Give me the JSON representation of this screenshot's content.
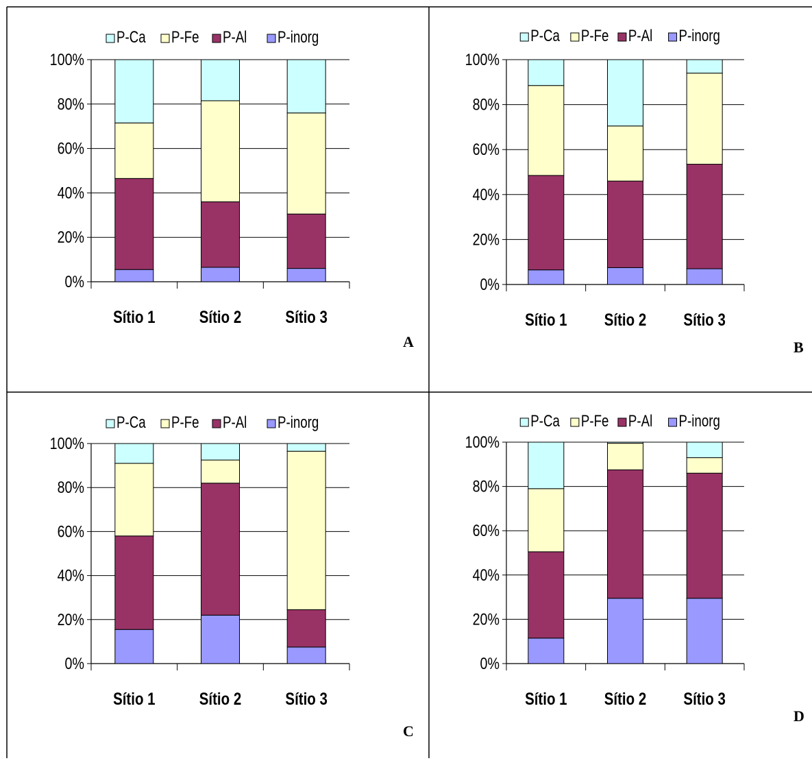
{
  "legend": [
    "P-Ca",
    "P-Fe",
    "P-Al",
    "P-inorg"
  ],
  "colors": {
    "P-inorg": "#9999FF",
    "P-Al": "#993366",
    "P-Fe": "#FFFFCC",
    "P-Ca": "#CCFFFF",
    "gridline": "#000000",
    "border": "#000000"
  },
  "chart_data": [
    {
      "panel": "A",
      "type": "bar",
      "stacked": true,
      "percent": true,
      "categories": [
        "Sítio 1",
        "Sítio 2",
        "Sítio 3"
      ],
      "ylim": [
        0,
        100
      ],
      "yticks": [
        "0%",
        "20%",
        "40%",
        "60%",
        "80%",
        "100%"
      ],
      "series": [
        {
          "name": "P-inorg",
          "values": [
            5.5,
            6.5,
            6
          ]
        },
        {
          "name": "P-Al",
          "values": [
            41,
            29.5,
            24.5
          ]
        },
        {
          "name": "P-Fe",
          "values": [
            25,
            45.5,
            45.5
          ]
        },
        {
          "name": "P-Ca",
          "values": [
            28.5,
            18.5,
            24
          ]
        }
      ]
    },
    {
      "panel": "B",
      "type": "bar",
      "stacked": true,
      "percent": true,
      "categories": [
        "Sítio 1",
        "Sítio 2",
        "Sítio 3"
      ],
      "ylim": [
        0,
        100
      ],
      "yticks": [
        "0%",
        "20%",
        "40%",
        "60%",
        "80%",
        "100%"
      ],
      "series": [
        {
          "name": "P-inorg",
          "values": [
            6.5,
            7.5,
            7
          ]
        },
        {
          "name": "P-Al",
          "values": [
            42,
            38.5,
            46.5
          ]
        },
        {
          "name": "P-Fe",
          "values": [
            40,
            24.5,
            40.5
          ]
        },
        {
          "name": "P-Ca",
          "values": [
            11.5,
            29.5,
            6
          ]
        }
      ]
    },
    {
      "panel": "C",
      "type": "bar",
      "stacked": true,
      "percent": true,
      "categories": [
        "Sítio 1",
        "Sítio 2",
        "Sítio 3"
      ],
      "ylim": [
        0,
        100
      ],
      "yticks": [
        "0%",
        "20%",
        "40%",
        "60%",
        "80%",
        "100%"
      ],
      "series": [
        {
          "name": "P-inorg",
          "values": [
            15.5,
            22,
            7.5
          ]
        },
        {
          "name": "P-Al",
          "values": [
            42.5,
            60,
            17
          ]
        },
        {
          "name": "P-Fe",
          "values": [
            33,
            10.5,
            72
          ]
        },
        {
          "name": "P-Ca",
          "values": [
            9,
            7.5,
            3.5
          ]
        }
      ]
    },
    {
      "panel": "D",
      "type": "bar",
      "stacked": true,
      "percent": true,
      "categories": [
        "Sítio 1",
        "Sítio 2",
        "Sítio 3"
      ],
      "ylim": [
        0,
        100
      ],
      "yticks": [
        "0%",
        "20%",
        "40%",
        "60%",
        "80%",
        "100%"
      ],
      "series": [
        {
          "name": "P-inorg",
          "values": [
            11.5,
            29.5,
            29.5
          ]
        },
        {
          "name": "P-Al",
          "values": [
            39,
            58,
            56.5
          ]
        },
        {
          "name": "P-Fe",
          "values": [
            28.5,
            12,
            7
          ]
        },
        {
          "name": "P-Ca",
          "values": [
            21,
            0.5,
            7
          ]
        }
      ]
    }
  ]
}
